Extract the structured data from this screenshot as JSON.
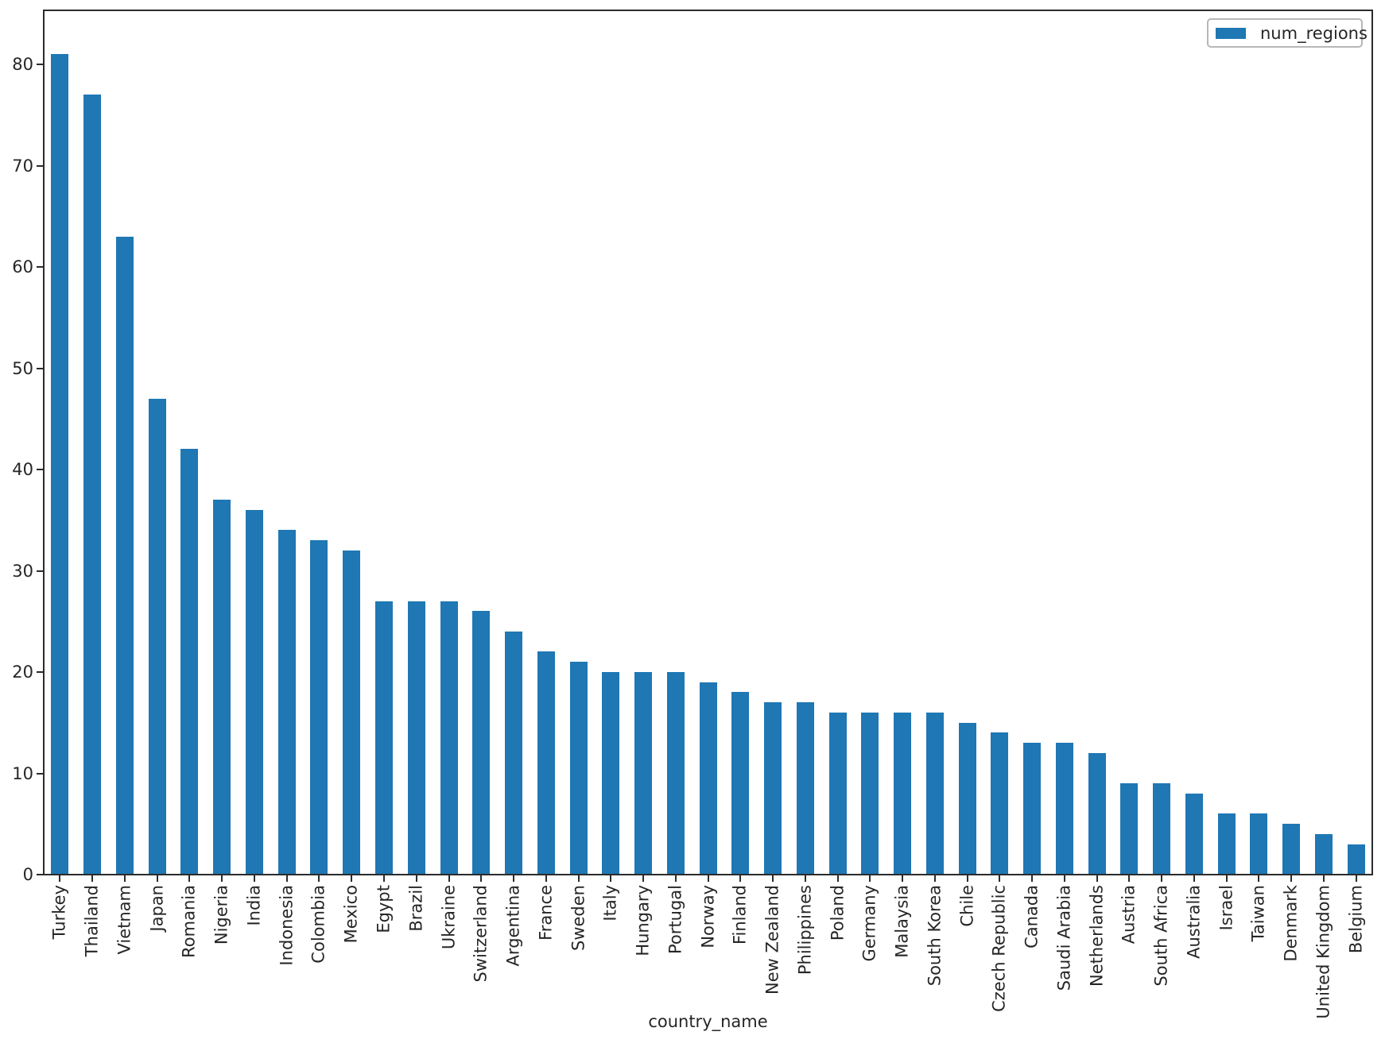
{
  "chart_data": {
    "type": "bar",
    "title": "",
    "xlabel": "country_name",
    "ylabel": "",
    "legend": [
      "num_regions"
    ],
    "legend_position": "upper right",
    "bar_color": "#1f77b4",
    "grid": false,
    "categories": [
      "Turkey",
      "Thailand",
      "Vietnam",
      "Japan",
      "Romania",
      "Nigeria",
      "India",
      "Indonesia",
      "Colombia",
      "Mexico",
      "Egypt",
      "Brazil",
      "Ukraine",
      "Switzerland",
      "Argentina",
      "France",
      "Sweden",
      "Italy",
      "Hungary",
      "Portugal",
      "Norway",
      "Finland",
      "New Zealand",
      "Philippines",
      "Poland",
      "Germany",
      "Malaysia",
      "South Korea",
      "Chile",
      "Czech Republic",
      "Canada",
      "Saudi Arabia",
      "Netherlands",
      "Austria",
      "South Africa",
      "Australia",
      "Israel",
      "Taiwan",
      "Denmark",
      "United Kingdom",
      "Belgium"
    ],
    "values": [
      81,
      77,
      63,
      47,
      42,
      37,
      36,
      34,
      33,
      32,
      27,
      27,
      27,
      26,
      24,
      22,
      21,
      20,
      20,
      20,
      19,
      18,
      17,
      17,
      16,
      16,
      16,
      16,
      15,
      14,
      13,
      13,
      12,
      9,
      9,
      8,
      6,
      6,
      5,
      4,
      3
    ],
    "yticks": [
      0,
      10,
      20,
      30,
      40,
      50,
      60,
      70,
      80
    ],
    "ylim": [
      0,
      85.3
    ],
    "xtick_rotation": 90
  }
}
